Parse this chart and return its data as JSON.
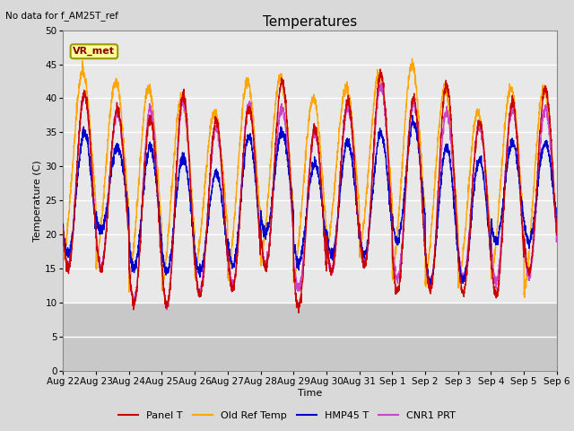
{
  "title": "Temperatures",
  "xlabel": "Time",
  "ylabel": "Temperature (C)",
  "text_no_data": "No data for f_AM25T_ref",
  "annotation_label": "VR_met",
  "ylim": [
    0,
    50
  ],
  "tick_labels": [
    "Aug 22",
    "Aug 23",
    "Aug 24",
    "Aug 25",
    "Aug 26",
    "Aug 27",
    "Aug 28",
    "Aug 29",
    "Aug 30",
    "Aug 31",
    "Sep 1",
    "Sep 2",
    "Sep 3",
    "Sep 4",
    "Sep 5",
    "Sep 6"
  ],
  "series": [
    {
      "label": "Panel T",
      "color": "#cc0000",
      "lw": 1.0,
      "ls": "-"
    },
    {
      "label": "Old Ref Temp",
      "color": "#ffa500",
      "lw": 1.0,
      "ls": "-"
    },
    {
      "label": "HMP45 T",
      "color": "#0000cc",
      "lw": 1.0,
      "ls": "-"
    },
    {
      "label": "CNR1 PRT",
      "color": "#cc44cc",
      "lw": 1.0,
      "ls": "-"
    }
  ],
  "bg_color": "#d9d9d9",
  "plot_bg_area_color": "#e8e8e8",
  "shaded_region_color": "#c8c8c8",
  "grid_color": "#ffffff",
  "n_days": 15,
  "pts_per_day": 200,
  "peak_max_panel": [
    40.5,
    38.5,
    37.0,
    40.5,
    36.5,
    38.5,
    42.5,
    35.5,
    39.5,
    43.5,
    40.0,
    42.0,
    36.5,
    39.5,
    41.5
  ],
  "peak_max_old": [
    44.0,
    42.5,
    41.5,
    40.0,
    38.0,
    42.5,
    43.0,
    40.0,
    41.5,
    43.5,
    45.0,
    41.5,
    38.0,
    41.5,
    41.5
  ],
  "peak_max_hmp": [
    35.0,
    33.0,
    33.0,
    31.5,
    29.0,
    34.5,
    35.0,
    30.5,
    33.5,
    35.0,
    36.5,
    33.0,
    31.0,
    33.5,
    33.5
  ],
  "peak_max_cnr": [
    40.5,
    38.0,
    38.5,
    39.5,
    35.5,
    39.0,
    38.5,
    35.0,
    38.5,
    42.0,
    39.5,
    38.0,
    36.0,
    38.5,
    38.5
  ],
  "trough_panel": [
    15.0,
    15.0,
    10.0,
    9.5,
    11.0,
    12.0,
    15.0,
    9.5,
    14.5,
    15.5,
    11.5,
    12.0,
    11.5,
    11.0,
    14.5
  ],
  "trough_old": [
    12.5,
    12.0,
    8.5,
    8.0,
    11.0,
    9.5,
    12.0,
    9.5,
    14.0,
    13.5,
    9.5,
    9.0,
    8.5,
    9.5,
    7.0
  ],
  "trough_hmp": [
    17.0,
    20.5,
    15.0,
    14.5,
    14.5,
    15.5,
    20.0,
    16.0,
    17.0,
    17.0,
    19.0,
    13.0,
    13.5,
    19.0,
    19.0
  ],
  "trough_cnr": [
    15.5,
    15.5,
    10.0,
    9.5,
    11.5,
    12.5,
    15.5,
    12.0,
    14.5,
    16.0,
    13.5,
    12.5,
    13.5,
    13.0,
    14.0
  ]
}
